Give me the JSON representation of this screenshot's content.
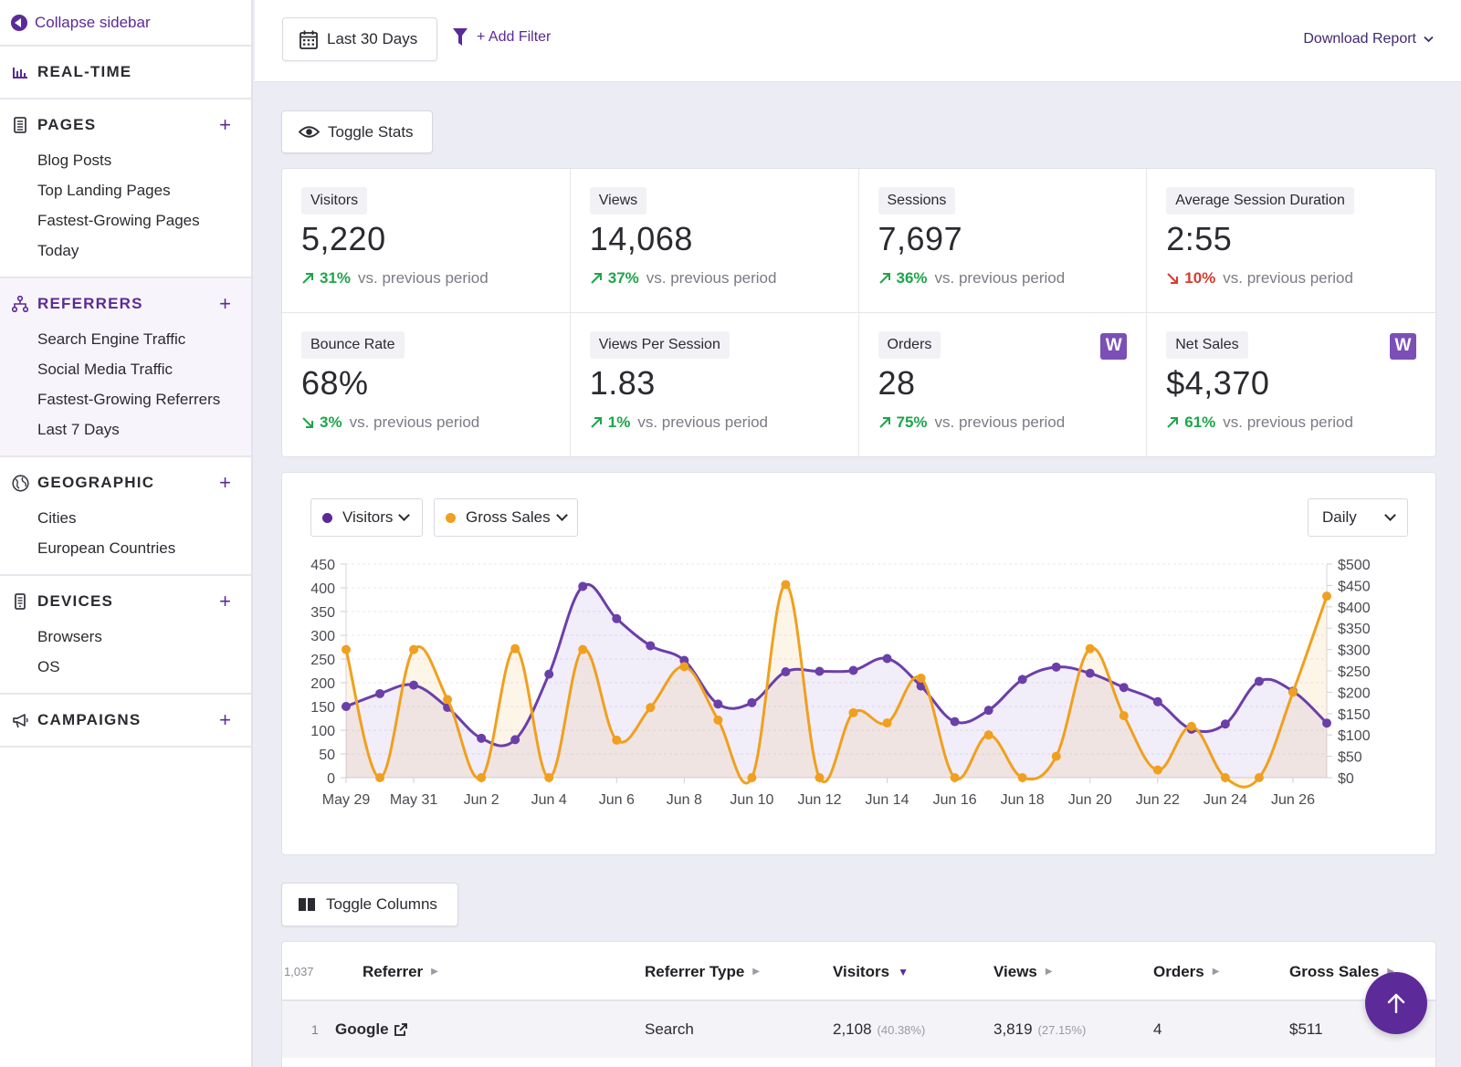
{
  "sidebar": {
    "collapse_label": "Collapse sidebar",
    "sections": [
      {
        "title": "REAL-TIME",
        "icon": "bar-chart-icon",
        "plus": false,
        "items": []
      },
      {
        "title": "PAGES",
        "icon": "document-icon",
        "plus": true,
        "items": [
          "Blog Posts",
          "Top Landing Pages",
          "Fastest-Growing Pages",
          "Today"
        ]
      },
      {
        "title": "REFERRERS",
        "icon": "sitemap-icon",
        "plus": true,
        "active": true,
        "items": [
          "Search Engine Traffic",
          "Social Media Traffic",
          "Fastest-Growing Referrers",
          "Last 7 Days"
        ]
      },
      {
        "title": "GEOGRAPHIC",
        "icon": "globe-icon",
        "plus": true,
        "items": [
          "Cities",
          "European Countries"
        ]
      },
      {
        "title": "DEVICES",
        "icon": "mobile-icon",
        "plus": true,
        "items": [
          "Browsers",
          "OS"
        ]
      },
      {
        "title": "CAMPAIGNS",
        "icon": "megaphone-icon",
        "plus": true,
        "items": []
      }
    ],
    "plus_symbol": "+"
  },
  "topbar": {
    "date_range": "Last 30 Days",
    "add_filter": "+ Add Filter",
    "download": "Download Report"
  },
  "toggle_stats": "Toggle Stats",
  "toggle_columns": "Toggle Columns",
  "stats": [
    {
      "label": "Visitors",
      "value": "5,220",
      "change": "31%",
      "direction": "up",
      "note": "vs. previous period"
    },
    {
      "label": "Views",
      "value": "14,068",
      "change": "37%",
      "direction": "up",
      "note": "vs. previous period"
    },
    {
      "label": "Sessions",
      "value": "7,697",
      "change": "36%",
      "direction": "up",
      "note": "vs. previous period"
    },
    {
      "label": "Average Session Duration",
      "value": "2:55",
      "change": "10%",
      "direction": "down-red",
      "note": "vs. previous period"
    },
    {
      "label": "Bounce Rate",
      "value": "68%",
      "change": "3%",
      "direction": "down-green",
      "note": "vs. previous period"
    },
    {
      "label": "Views Per Session",
      "value": "1.83",
      "change": "1%",
      "direction": "up",
      "note": "vs. previous period"
    },
    {
      "label": "Orders",
      "value": "28",
      "change": "75%",
      "direction": "up",
      "note": "vs. previous period",
      "woo": "W"
    },
    {
      "label": "Net Sales",
      "value": "$4,370",
      "change": "61%",
      "direction": "up",
      "note": "vs. previous period",
      "woo": "W"
    }
  ],
  "chart_controls": {
    "series1": "Visitors",
    "series2": "Gross Sales",
    "interval": "Daily"
  },
  "colors": {
    "accent": "#5b2a97",
    "visitors": "#6b3fa8",
    "sales": "#f0a01e",
    "up": "#1ea54a",
    "down": "#d63b2c"
  },
  "chart_data": {
    "type": "line",
    "x": [
      "May 29",
      "May 30",
      "May 31",
      "Jun 1",
      "Jun 2",
      "Jun 3",
      "Jun 4",
      "Jun 5",
      "Jun 6",
      "Jun 7",
      "Jun 8",
      "Jun 9",
      "Jun 10",
      "Jun 11",
      "Jun 12",
      "Jun 13",
      "Jun 14",
      "Jun 15",
      "Jun 16",
      "Jun 17",
      "Jun 18",
      "Jun 19",
      "Jun 20",
      "Jun 21",
      "Jun 22",
      "Jun 23",
      "Jun 24",
      "Jun 25",
      "Jun 26",
      "Jun 27"
    ],
    "x_tick_labels": [
      "May 29",
      "May 31",
      "Jun 2",
      "Jun 4",
      "Jun 6",
      "Jun 8",
      "Jun 10",
      "Jun 12",
      "Jun 14",
      "Jun 16",
      "Jun 18",
      "Jun 20",
      "Jun 22",
      "Jun 24",
      "Jun 26"
    ],
    "y_ticks_left": [
      "450",
      "400",
      "350",
      "300",
      "250",
      "200",
      "150",
      "100",
      "50",
      "0"
    ],
    "y_ticks_right": [
      "$500",
      "$450",
      "$400",
      "$350",
      "$300",
      "$250",
      "$200",
      "$150",
      "$100",
      "$50",
      "$0"
    ],
    "ylim_left": [
      0,
      450
    ],
    "ylim_right": [
      0,
      500
    ],
    "series": [
      {
        "name": "Visitors",
        "axis": "left",
        "values": [
          150,
          177,
          195,
          148,
          83,
          80,
          218,
          403,
          335,
          278,
          247,
          155,
          158,
          223,
          224,
          226,
          251,
          193,
          118,
          142,
          207,
          233,
          220,
          190,
          160,
          102,
          113,
          203,
          182,
          115
        ]
      },
      {
        "name": "Gross Sales",
        "axis": "right",
        "values": [
          300,
          0,
          300,
          183,
          0,
          302,
          0,
          300,
          88,
          164,
          260,
          135,
          0,
          452,
          0,
          152,
          128,
          233,
          0,
          100,
          0,
          50,
          302,
          145,
          18,
          120,
          0,
          0,
          200,
          425
        ]
      }
    ],
    "grid": true
  },
  "table": {
    "count": "1,037",
    "columns": [
      "Referrer",
      "Referrer Type",
      "Visitors",
      "Views",
      "Orders",
      "Gross Sales"
    ],
    "rows": [
      {
        "rank": "1",
        "referrer": "Google",
        "type": "Search",
        "visitors": "2,108",
        "visitors_pct": "(40.38%)",
        "views": "3,819",
        "views_pct": "(27.15%)",
        "orders": "4",
        "gross_sales": "$511"
      }
    ]
  }
}
